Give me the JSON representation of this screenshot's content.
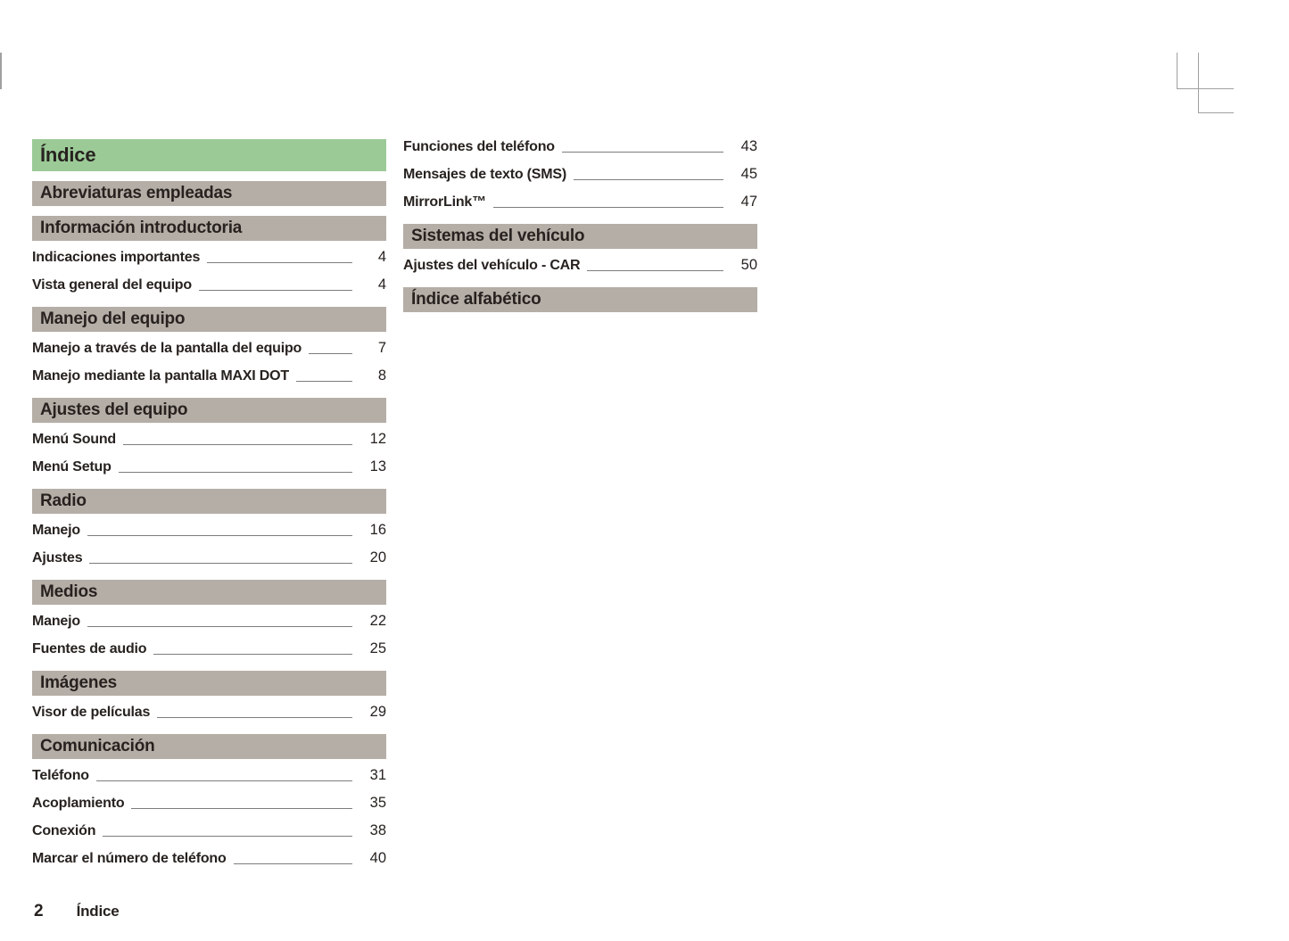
{
  "colors": {
    "title_bg": "#9bca97",
    "section_bg": "#b5aea7",
    "text": "#27221f",
    "leader": "#7d7d7d",
    "crop": "#a0a0a0"
  },
  "columns": {
    "left": [
      {
        "type": "title",
        "label": "Índice"
      },
      {
        "type": "section",
        "label": "Abreviaturas empleadas"
      },
      {
        "type": "section",
        "label": "Información introductoria"
      },
      {
        "type": "entry",
        "label": "Indicaciones importantes",
        "page": "4"
      },
      {
        "type": "entry",
        "label": "Vista general del equipo",
        "page": "4"
      },
      {
        "type": "section",
        "label": "Manejo del equipo"
      },
      {
        "type": "entry",
        "label": "Manejo a través de la pantalla del equipo",
        "page": "7"
      },
      {
        "type": "entry",
        "label": "Manejo mediante la pantalla MAXI DOT",
        "page": "8"
      },
      {
        "type": "section",
        "label": "Ajustes del equipo"
      },
      {
        "type": "entry",
        "label": "Menú Sound",
        "page": "12"
      },
      {
        "type": "entry",
        "label": "Menú Setup",
        "page": "13"
      },
      {
        "type": "section",
        "label": "Radio"
      },
      {
        "type": "entry",
        "label": "Manejo",
        "page": "16"
      },
      {
        "type": "entry",
        "label": "Ajustes",
        "page": "20"
      },
      {
        "type": "section",
        "label": "Medios"
      },
      {
        "type": "entry",
        "label": "Manejo",
        "page": "22"
      },
      {
        "type": "entry",
        "label": "Fuentes de audio",
        "page": "25"
      },
      {
        "type": "section",
        "label": "Imágenes"
      },
      {
        "type": "entry",
        "label": "Visor de películas",
        "page": "29"
      },
      {
        "type": "section",
        "label": "Comunicación"
      },
      {
        "type": "entry",
        "label": "Teléfono",
        "page": "31"
      },
      {
        "type": "entry",
        "label": "Acoplamiento",
        "page": "35"
      },
      {
        "type": "entry",
        "label": "Conexión",
        "page": "38"
      },
      {
        "type": "entry",
        "label": "Marcar el número de teléfono",
        "page": "40"
      }
    ],
    "right": [
      {
        "type": "entry",
        "label": "Funciones del teléfono",
        "page": "43"
      },
      {
        "type": "entry",
        "label": "Mensajes de texto (SMS)",
        "page": "45"
      },
      {
        "type": "entry",
        "label": "MirrorLink™",
        "page": "47"
      },
      {
        "type": "section",
        "label": "Sistemas del vehículo"
      },
      {
        "type": "entry",
        "label": "Ajustes del vehículo - CAR",
        "page": "50"
      },
      {
        "type": "section",
        "label": "Índice alfabético"
      }
    ]
  },
  "footer": {
    "page_number": "2",
    "label": "Índice"
  }
}
